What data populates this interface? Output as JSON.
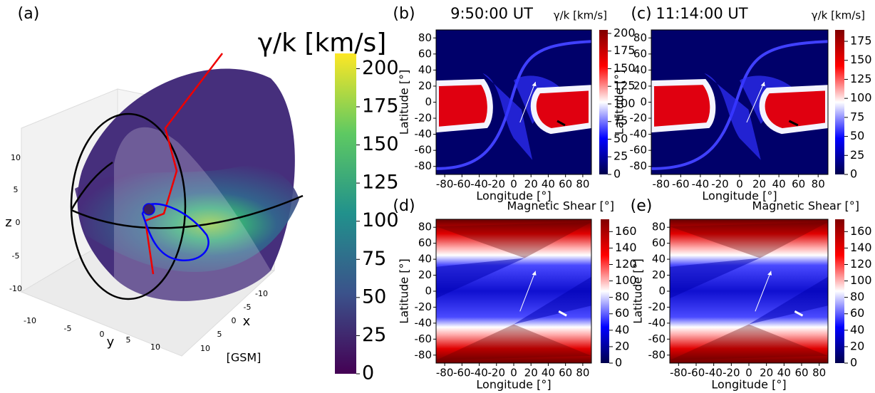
{
  "chart_data": [
    {
      "type": "surface3d",
      "panel_label": "(a)",
      "xlabel": "x",
      "ylabel": "y",
      "zlabel": "z",
      "frame_label": "[GSM]",
      "xticks": [
        10,
        5,
        0,
        -5,
        -10
      ],
      "yticks": [
        -10,
        -5,
        0,
        5,
        10
      ],
      "zticks": [
        10,
        5,
        0,
        -5,
        -10
      ],
      "colorbar": {
        "label": "γ/k [km/s]",
        "lim": [
          0,
          210
        ],
        "ticks": [
          0,
          25,
          50,
          75,
          100,
          125,
          150,
          175,
          200
        ],
        "colormap": [
          "#440154",
          "#3b528b",
          "#21918c",
          "#5ec962",
          "#fde725"
        ]
      }
    },
    {
      "type": "heatmap",
      "panel_label": "(b)",
      "title": "9:50:00 UT",
      "xlabel": "Longitude [°]",
      "ylabel": "Latitude [°]",
      "xlim": [
        -90,
        90
      ],
      "ylim": [
        -90,
        90
      ],
      "xticks": [
        -80,
        -60,
        -40,
        -20,
        0,
        20,
        40,
        60,
        80
      ],
      "yticks": [
        -80,
        -60,
        -40,
        -20,
        0,
        20,
        40,
        60,
        80
      ],
      "colorbar": {
        "label": "γ/k [km/s]",
        "lim": [
          0,
          205
        ],
        "ticks": [
          0,
          25,
          50,
          75,
          100,
          125,
          150,
          175,
          200
        ],
        "colormap": [
          "#00004c",
          "#0000ff",
          "#ffffff",
          "#ff0000",
          "#800000"
        ]
      }
    },
    {
      "type": "heatmap",
      "panel_label": "(c)",
      "title": "11:14:00 UT",
      "xlabel": "Longitude [°]",
      "ylabel": "Latitude [°]",
      "xlim": [
        -90,
        90
      ],
      "ylim": [
        -90,
        90
      ],
      "xticks": [
        -80,
        -60,
        -40,
        -20,
        0,
        20,
        40,
        60,
        80
      ],
      "yticks": [
        -80,
        -60,
        -40,
        -20,
        0,
        20,
        40,
        60,
        80
      ],
      "colorbar": {
        "label": "γ/k [km/s]",
        "lim": [
          0,
          190
        ],
        "ticks": [
          0,
          25,
          50,
          75,
          100,
          125,
          150,
          175
        ],
        "colormap": [
          "#00004c",
          "#0000ff",
          "#ffffff",
          "#ff0000",
          "#800000"
        ]
      }
    },
    {
      "type": "heatmap",
      "panel_label": "(d)",
      "xlabel": "Longitude [°]",
      "ylabel": "Latitude [°]",
      "xlim": [
        -90,
        90
      ],
      "ylim": [
        -90,
        90
      ],
      "xticks": [
        -80,
        -60,
        -40,
        -20,
        0,
        20,
        40,
        60,
        80
      ],
      "yticks": [
        -80,
        -60,
        -40,
        -20,
        0,
        20,
        40,
        60,
        80
      ],
      "colorbar": {
        "label": "Magnetic Shear [°]",
        "lim": [
          0,
          175
        ],
        "ticks": [
          0,
          20,
          40,
          60,
          80,
          100,
          120,
          140,
          160
        ],
        "colormap": [
          "#00004c",
          "#0000ff",
          "#ffffff",
          "#ff0000",
          "#800000"
        ]
      }
    },
    {
      "type": "heatmap",
      "panel_label": "(e)",
      "xlabel": "Longitude [°]",
      "ylabel": "Latitude [°]",
      "xlim": [
        -90,
        90
      ],
      "ylim": [
        -90,
        90
      ],
      "xticks": [
        -80,
        -60,
        -40,
        -20,
        0,
        20,
        40,
        60,
        80
      ],
      "yticks": [
        -80,
        -60,
        -40,
        -20,
        0,
        20,
        40,
        60,
        80
      ],
      "colorbar": {
        "label": "Magnetic Shear [°]",
        "lim": [
          0,
          175
        ],
        "ticks": [
          0,
          20,
          40,
          60,
          80,
          100,
          120,
          140,
          160
        ],
        "colormap": [
          "#00004c",
          "#0000ff",
          "#ffffff",
          "#ff0000",
          "#800000"
        ]
      }
    }
  ]
}
